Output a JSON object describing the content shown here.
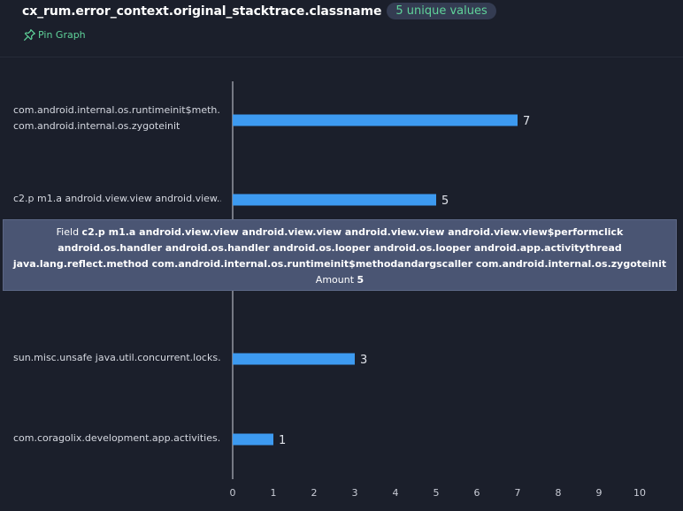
{
  "header": {
    "title": "cx_rum.error_context.original_stacktrace.classname",
    "badge": "5 unique values",
    "pin_label": "Pin Graph",
    "pin_icon": "pin-icon"
  },
  "colors": {
    "bar": "#3d9af0",
    "background": "#1b1f2b",
    "accent": "#5fd39a"
  },
  "chart_data": {
    "type": "bar",
    "orientation": "horizontal",
    "categories": [
      [
        "com.android.internal.os.runtimeinit$meth...",
        "com.android.internal.os.zygoteinit"
      ],
      [
        "c2.p m1.a android.view.view android.view...."
      ],
      [
        ""
      ],
      [
        "sun.misc.unsafe java.util.concurrent.locks...."
      ],
      [
        "com.coragolix.development.app.activities...."
      ]
    ],
    "values": [
      7,
      5,
      null,
      3,
      1
    ],
    "value_labels": [
      "7",
      "5",
      "",
      "3",
      "1"
    ],
    "xlim": [
      0,
      10
    ],
    "xticks": [
      "0",
      "1",
      "2",
      "3",
      "4",
      "5",
      "6",
      "7",
      "8",
      "9",
      "10"
    ],
    "grid": false
  },
  "tooltip": {
    "field_label": "Field",
    "field_value": "c2.p m1.a android.view.view android.view.view android.view.view android.view.view$performclick android.os.handler android.os.handler android.os.looper android.os.looper android.app.activitythread java.lang.reflect.method com.android.internal.os.runtimeinit$methodandargscaller com.android.internal.os.zygoteinit",
    "amount_label": "Amount",
    "amount_value": "5"
  }
}
